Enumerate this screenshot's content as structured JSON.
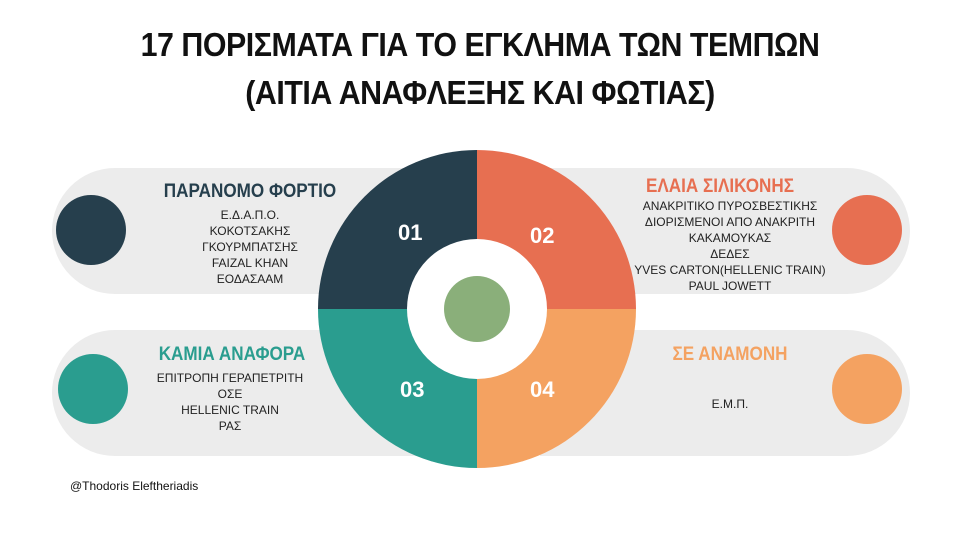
{
  "title": {
    "line1": "17 ΠΟΡΙΣΜΑΤΑ ΓΙΑ ΤΟ ΕΓΚΛΗΜΑ ΤΩΝ ΤΕΜΠΩΝ",
    "line2": "(ΑΙΤΙΑ ΑΝΑΦΛΕΞΗΣ ΚΑΙ ΦΩΤΙΑΣ)"
  },
  "quadrants": [
    {
      "number": "01",
      "heading": "ΠΑΡΑΝΟΜΟ ΦΟΡΤΙΟ",
      "color": "#263f4d",
      "items": [
        "Ε.Δ.Α.Π.Ο.",
        "ΚΟΚΟΤΣΑΚΗΣ",
        "ΓΚΟΥΡΜΠΑΤΣΗΣ",
        "FAIZAL KHAN",
        "ΕΟΔΑΣΑΑΜ"
      ]
    },
    {
      "number": "02",
      "heading": "ΕΛΑΙΑ ΣΙΛΙΚΟΝΗΣ",
      "color": "#e76f51",
      "items": [
        "ΑΝΑΚΡΙΤΙΚΟ ΠΥΡΟΣΒΕΣΤΙΚΗΣ",
        "ΔΙΟΡΙΣΜΕΝΟΙ ΑΠΟ ΑΝΑΚΡΙΤΗ",
        "ΚΑΚΑΜΟΥΚΑΣ",
        "ΔΕΔΕΣ",
        "YVES CARTON(HELLENIC TRAIN)",
        "PAUL JOWETT"
      ]
    },
    {
      "number": "03",
      "heading": "ΚΑΜΙΑ ΑΝΑΦΟΡΑ",
      "color": "#2a9d8f",
      "items": [
        "ΕΠΙΤΡΟΠΗ ΓΕΡΑΠΕΤΡΙΤΗ",
        "ΟΣΕ",
        "HELLENIC TRAIN",
        "ΡΑΣ"
      ]
    },
    {
      "number": "04",
      "heading": "ΣΕ ΑΝΑΜΟΝΗ",
      "color": "#f4a261",
      "items": [
        "Ε.Μ.Π."
      ]
    }
  ],
  "center_color": "#8aaf7a",
  "pill_color": "#ececec",
  "credit": "@Thodoris Eleftheriadis"
}
